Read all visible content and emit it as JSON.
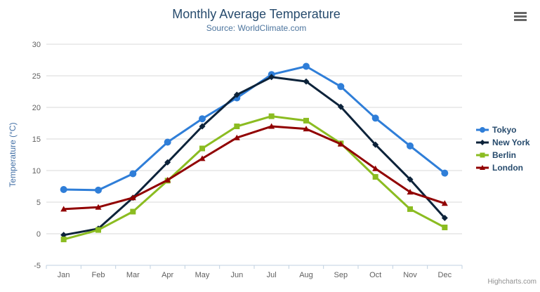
{
  "chart_data": {
    "type": "line",
    "title": "Monthly Average Temperature",
    "subtitle": "Source: WorldClimate.com",
    "xlabel": "",
    "ylabel": "Temperature (°C)",
    "categories": [
      "Jan",
      "Feb",
      "Mar",
      "Apr",
      "May",
      "Jun",
      "Jul",
      "Aug",
      "Sep",
      "Oct",
      "Nov",
      "Dec"
    ],
    "ylim": [
      -5,
      30
    ],
    "ytick_step": 5,
    "grid": true,
    "legend_position": "right",
    "series": [
      {
        "name": "Tokyo",
        "marker": "circle",
        "color": "#2f7ed8",
        "values": [
          7.0,
          6.9,
          9.5,
          14.5,
          18.2,
          21.5,
          25.2,
          26.5,
          23.3,
          18.3,
          13.9,
          9.6
        ]
      },
      {
        "name": "New York",
        "marker": "diamond",
        "color": "#0d233a",
        "values": [
          -0.2,
          0.8,
          5.7,
          11.3,
          17.0,
          22.0,
          24.8,
          24.1,
          20.1,
          14.1,
          8.6,
          2.5
        ]
      },
      {
        "name": "Berlin",
        "marker": "square",
        "color": "#8bbc21",
        "values": [
          -0.9,
          0.6,
          3.5,
          8.4,
          13.5,
          17.0,
          18.6,
          17.9,
          14.3,
          9.0,
          3.9,
          1.0
        ]
      },
      {
        "name": "London",
        "marker": "triangle",
        "color": "#910000",
        "values": [
          3.9,
          4.2,
          5.7,
          8.5,
          11.9,
          15.2,
          17.0,
          16.6,
          14.2,
          10.3,
          6.6,
          4.8
        ]
      }
    ]
  },
  "ui": {
    "credits": "Highcharts.com",
    "grid_color": "#d8d8d8",
    "axis_line_color": "#c0d0e0",
    "tick_label_color": "#606060",
    "axis_title_color": "#4572a7",
    "title_color": "#274b6d",
    "subtitle_color": "#4d759e",
    "legend_text_color": "#274b6d",
    "export_icon": "hamburger-menu"
  }
}
